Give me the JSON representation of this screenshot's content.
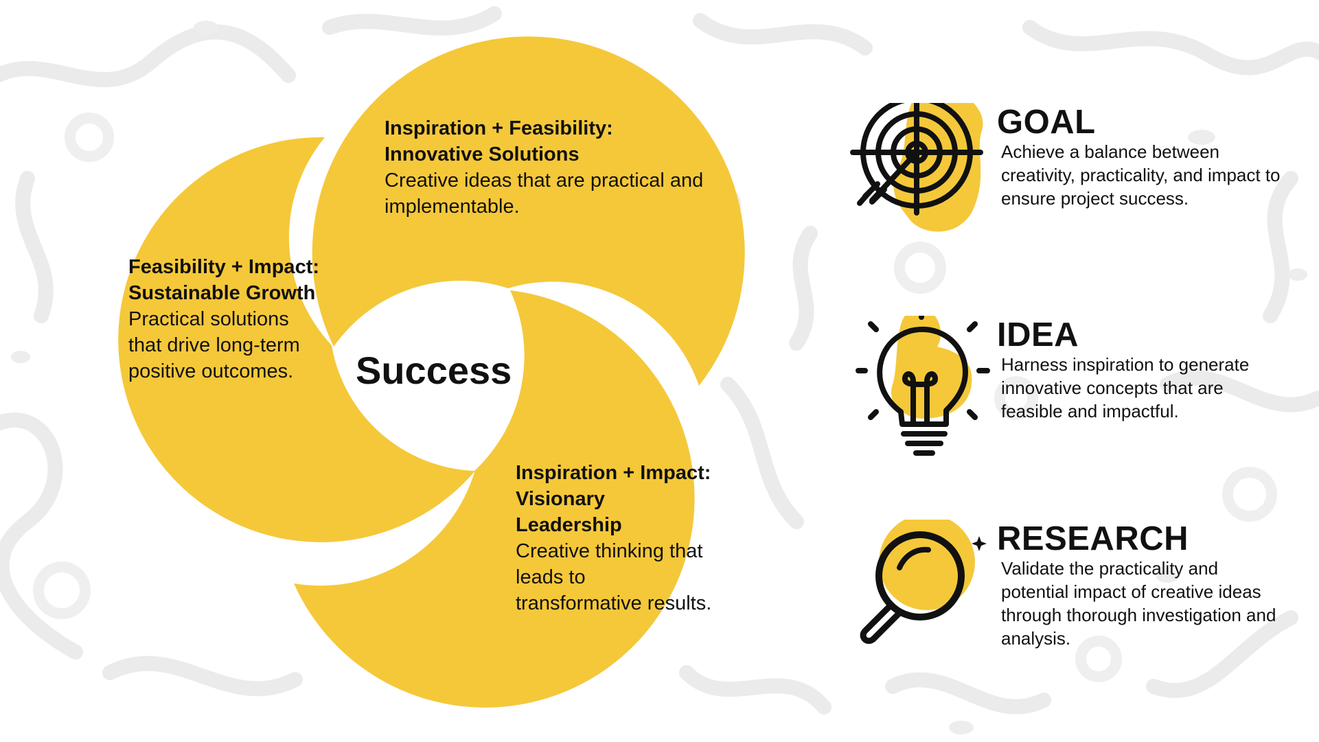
{
  "colors": {
    "accent_yellow": "#F5C83A",
    "text": "#111111",
    "background": "#FFFFFF",
    "pattern": "#EDEDED"
  },
  "diagram": {
    "center_label": "Success",
    "lobes": [
      {
        "id": "top",
        "heading": "Inspiration + Feasibility: Innovative Solutions",
        "body": "Creative ideas that are practical and implementable."
      },
      {
        "id": "left",
        "heading": "Feasibility + Impact: Sustainable Growth",
        "body": "Practical solutions that drive long-term positive outcomes."
      },
      {
        "id": "right",
        "heading": "Inspiration + Impact: Visionary Leadership",
        "body": "Creative thinking that leads to transformative results."
      }
    ]
  },
  "panels": [
    {
      "id": "goal",
      "icon": "target-arrow-icon",
      "title": "GOAL",
      "description": "Achieve a balance between creativity, practicality, and impact to ensure project success."
    },
    {
      "id": "idea",
      "icon": "lightbulb-icon",
      "title": "IDEA",
      "description": "Harness inspiration to generate innovative concepts that are feasible and impactful."
    },
    {
      "id": "research",
      "icon": "magnifying-glass-icon",
      "title": "RESEARCH",
      "description": "Validate the practicality and potential impact of creative ideas through thorough investigation and analysis."
    }
  ]
}
